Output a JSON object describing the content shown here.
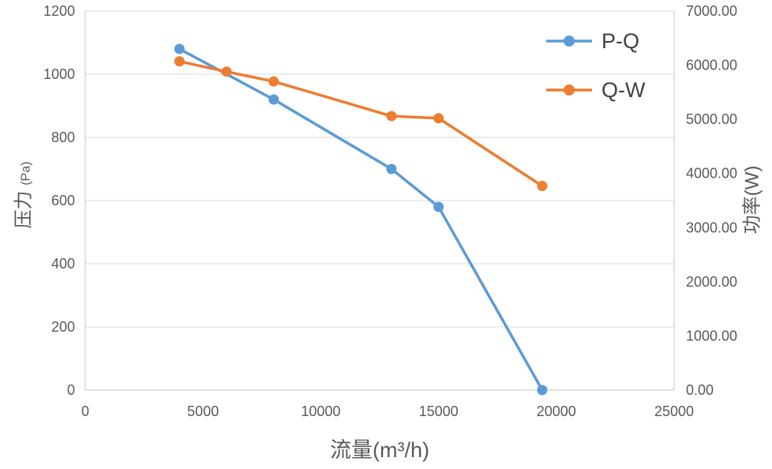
{
  "chart_data": {
    "type": "line",
    "title": "",
    "xlabel": "流量(m³/h)",
    "ylabel_left_main": "压力",
    "ylabel_left_unit": "(Pa)",
    "ylabel_right": "功率(W)",
    "xlim": [
      0,
      25000
    ],
    "ylim_left": [
      0,
      1200
    ],
    "ylim_right": [
      0,
      7000
    ],
    "x_ticklabels": [
      "0",
      "5000",
      "10000",
      "15000",
      "20000",
      "25000"
    ],
    "y_left_ticklabels": [
      "0",
      "200",
      "400",
      "600",
      "800",
      "1000",
      "1200"
    ],
    "y_right_ticklabels": [
      "0.00",
      "1000.00",
      "2000.00",
      "3000.00",
      "4000.00",
      "5000.00",
      "6000.00",
      "7000.00"
    ],
    "grid": "horizontal-only",
    "legend_position": "inside-top-right",
    "series": [
      {
        "name": "P-Q",
        "axis": "left",
        "color": "#5B9BD5",
        "points": [
          [
            4000,
            1080
          ],
          [
            8000,
            920
          ],
          [
            13000,
            700
          ],
          [
            15000,
            580
          ],
          [
            19400,
            0
          ]
        ]
      },
      {
        "name": "Q-W",
        "axis": "right",
        "color": "#ED7D31",
        "points": [
          [
            4000,
            6070
          ],
          [
            6000,
            5880
          ],
          [
            8000,
            5700
          ],
          [
            13000,
            5060
          ],
          [
            15000,
            5020
          ],
          [
            19400,
            3770
          ]
        ]
      }
    ],
    "colors": {
      "gridline": "#D9D9D9",
      "axis_line": "#C6C6C6",
      "tick_text": "#595959",
      "legend_text": "#404040"
    }
  }
}
